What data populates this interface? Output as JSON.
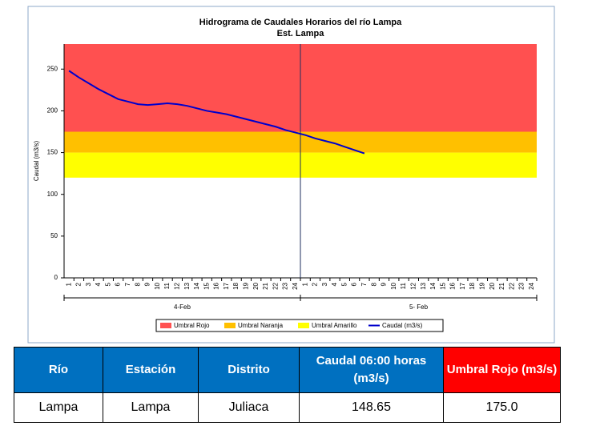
{
  "chart_data": {
    "type": "line",
    "title": "Hidrograma de Caudales Horarios del río Lampa",
    "subtitle": "Est. Lampa",
    "y_label": "Caudal  (m3/s)",
    "categories": [
      "1",
      "2",
      "3",
      "4",
      "5",
      "6",
      "7",
      "8",
      "9",
      "10",
      "11",
      "12",
      "13",
      "14",
      "15",
      "16",
      "17",
      "18",
      "19",
      "20",
      "21",
      "22",
      "23",
      "24",
      "1",
      "2",
      "3",
      "4",
      "5",
      "6",
      "7",
      "8",
      "9",
      "10",
      "11",
      "12",
      "13",
      "14",
      "15",
      "16",
      "17",
      "18",
      "19",
      "20",
      "21",
      "22",
      "23",
      "24"
    ],
    "x_groups": [
      "4-Feb",
      "5- Feb"
    ],
    "bands": [
      {
        "name": "Umbral Rojo",
        "color": "#ff5050",
        "from": 175,
        "to": 280
      },
      {
        "name": "Umbral Naranja",
        "color": "#ffc000",
        "from": 150,
        "to": 175
      },
      {
        "name": "Umbral Amarillo",
        "color": "#ffff00",
        "from": 120,
        "to": 150
      }
    ],
    "series": [
      {
        "name": "Caudal (m3/s)",
        "color": "#0000cc",
        "values": [
          248,
          240,
          233,
          226,
          220,
          214,
          211,
          208,
          207,
          208,
          209,
          208,
          206,
          203,
          200,
          198,
          196,
          193,
          190,
          187,
          184,
          181,
          177,
          174,
          171,
          167,
          164,
          161,
          157,
          153,
          149,
          null,
          null,
          null,
          null,
          null,
          null,
          null,
          null,
          null,
          null,
          null,
          null,
          null,
          null,
          null,
          null,
          null
        ]
      }
    ],
    "ylim": [
      0,
      280
    ],
    "yticks": [
      0,
      50,
      100,
      150,
      200,
      250
    ]
  },
  "table": {
    "header": [
      "Río",
      "Estación",
      "Distrito",
      "Caudal  06:00 horas (m3/s)",
      "Umbral Rojo (m3/s)"
    ],
    "rows": [
      [
        "Lampa",
        "Lampa",
        "Juliaca",
        "148.65",
        "175.0"
      ]
    ]
  }
}
